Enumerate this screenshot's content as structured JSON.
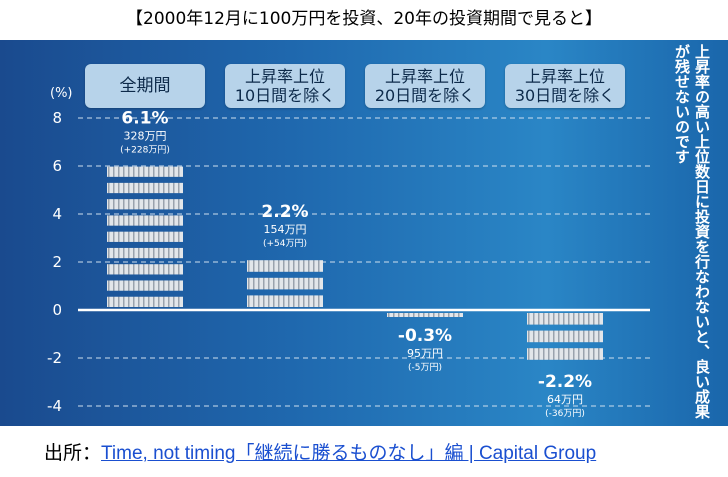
{
  "title": "【2000年12月に100万円を投資、20年の投資期間で見ると】",
  "side_note": "上昇率の高い上位数日に投資を行なわないと、良い成果が残せないのです",
  "source": {
    "prefix": "出所：",
    "link_text": "Time, not timing「継続に勝るものなし」編 | Capital Group"
  },
  "colors": {
    "bar_fill": "#e2e6ea",
    "bar_stripe": "#9aa3ad",
    "grid": "#cfe0ef",
    "text": "#ffffff"
  },
  "chart_data": {
    "type": "bar",
    "title": "",
    "xlabel": "",
    "ylabel": "(%)",
    "ylim": [
      -4,
      8
    ],
    "yticks": [
      8,
      6,
      4,
      2,
      0,
      -2,
      -4
    ],
    "ytick_labels": [
      "8",
      "6",
      "4",
      "2",
      "0",
      "-2",
      "-4"
    ],
    "grid": true,
    "categories": [
      {
        "lines": [
          "全期間"
        ]
      },
      {
        "lines": [
          "上昇率上位",
          "10日間を除く"
        ]
      },
      {
        "lines": [
          "上昇率上位",
          "20日間を除く"
        ]
      },
      {
        "lines": [
          "上昇率上位",
          "30日間を除く"
        ]
      }
    ],
    "values": [
      6.1,
      2.2,
      -0.3,
      -2.2
    ],
    "value_labels": [
      "6.1%",
      "2.2%",
      "-0.3%",
      "-2.2%"
    ],
    "amount_labels": [
      "328万円",
      "154万円",
      "95万円",
      "64万円"
    ],
    "gain_labels": [
      "(+228万円)",
      "(+54万円)",
      "(-5万円)",
      "(-36万円)"
    ]
  }
}
